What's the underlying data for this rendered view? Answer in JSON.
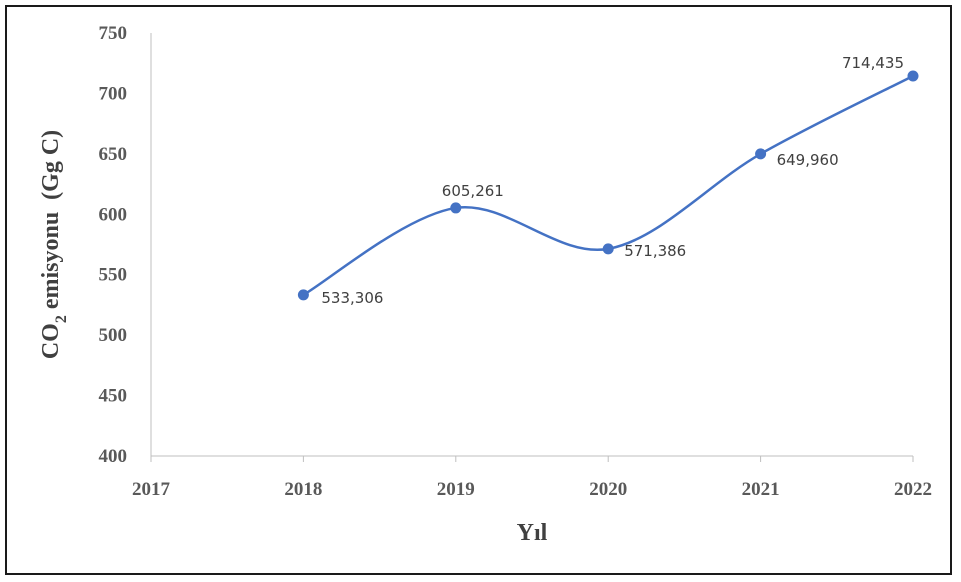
{
  "chart_data": {
    "type": "line",
    "smooth": true,
    "x_ticks": [
      "2017",
      "2018",
      "2019",
      "2020",
      "2021",
      "2022"
    ],
    "y_ticks": [
      "400",
      "450",
      "500",
      "550",
      "600",
      "650",
      "700",
      "750"
    ],
    "xlim": [
      2017,
      2022
    ],
    "ylim": [
      400,
      750
    ],
    "xlabel": "Yıl",
    "ylabel_parts": {
      "base": "CO",
      "sub": "2",
      "rest": " emisyonu  (Gg C)"
    },
    "grid": false,
    "legend": "none",
    "series": [
      {
        "x": [
          2018,
          2019,
          2020,
          2021,
          2022
        ],
        "y": [
          533.306,
          605.261,
          571.386,
          649.96,
          714.435
        ],
        "labels": [
          "533,306",
          "605,261",
          "571,386",
          "649,960",
          "714,435"
        ],
        "color": "#4472c4"
      }
    ]
  }
}
